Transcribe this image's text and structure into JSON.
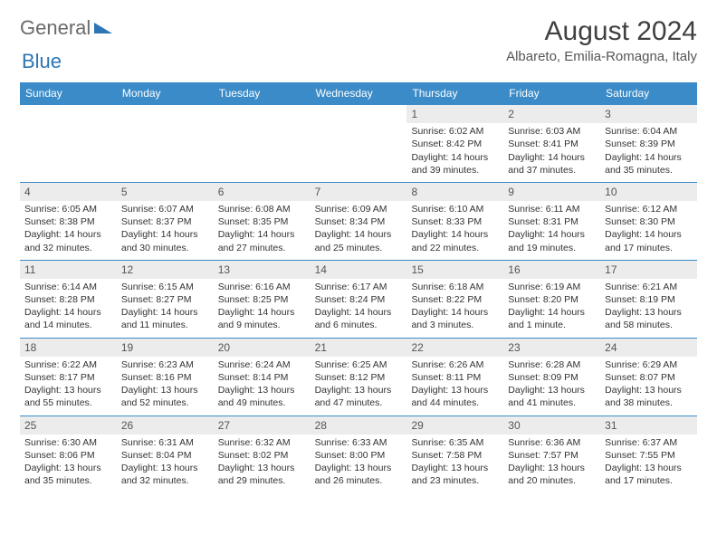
{
  "logo": {
    "part1": "General",
    "part2": "Blue"
  },
  "title": "August 2024",
  "location": "Albareto, Emilia-Romagna, Italy",
  "colors": {
    "header_bar": "#3b8bc8",
    "daynum_bg": "#ececec",
    "text": "#333333",
    "logo_gray": "#6a6a6a",
    "logo_blue": "#2d75b5"
  },
  "weekdays": [
    "Sunday",
    "Monday",
    "Tuesday",
    "Wednesday",
    "Thursday",
    "Friday",
    "Saturday"
  ],
  "weeks": [
    [
      {
        "n": "",
        "sr": "",
        "ss": "",
        "dl": ""
      },
      {
        "n": "",
        "sr": "",
        "ss": "",
        "dl": ""
      },
      {
        "n": "",
        "sr": "",
        "ss": "",
        "dl": ""
      },
      {
        "n": "",
        "sr": "",
        "ss": "",
        "dl": ""
      },
      {
        "n": "1",
        "sr": "Sunrise: 6:02 AM",
        "ss": "Sunset: 8:42 PM",
        "dl": "Daylight: 14 hours and 39 minutes."
      },
      {
        "n": "2",
        "sr": "Sunrise: 6:03 AM",
        "ss": "Sunset: 8:41 PM",
        "dl": "Daylight: 14 hours and 37 minutes."
      },
      {
        "n": "3",
        "sr": "Sunrise: 6:04 AM",
        "ss": "Sunset: 8:39 PM",
        "dl": "Daylight: 14 hours and 35 minutes."
      }
    ],
    [
      {
        "n": "4",
        "sr": "Sunrise: 6:05 AM",
        "ss": "Sunset: 8:38 PM",
        "dl": "Daylight: 14 hours and 32 minutes."
      },
      {
        "n": "5",
        "sr": "Sunrise: 6:07 AM",
        "ss": "Sunset: 8:37 PM",
        "dl": "Daylight: 14 hours and 30 minutes."
      },
      {
        "n": "6",
        "sr": "Sunrise: 6:08 AM",
        "ss": "Sunset: 8:35 PM",
        "dl": "Daylight: 14 hours and 27 minutes."
      },
      {
        "n": "7",
        "sr": "Sunrise: 6:09 AM",
        "ss": "Sunset: 8:34 PM",
        "dl": "Daylight: 14 hours and 25 minutes."
      },
      {
        "n": "8",
        "sr": "Sunrise: 6:10 AM",
        "ss": "Sunset: 8:33 PM",
        "dl": "Daylight: 14 hours and 22 minutes."
      },
      {
        "n": "9",
        "sr": "Sunrise: 6:11 AM",
        "ss": "Sunset: 8:31 PM",
        "dl": "Daylight: 14 hours and 19 minutes."
      },
      {
        "n": "10",
        "sr": "Sunrise: 6:12 AM",
        "ss": "Sunset: 8:30 PM",
        "dl": "Daylight: 14 hours and 17 minutes."
      }
    ],
    [
      {
        "n": "11",
        "sr": "Sunrise: 6:14 AM",
        "ss": "Sunset: 8:28 PM",
        "dl": "Daylight: 14 hours and 14 minutes."
      },
      {
        "n": "12",
        "sr": "Sunrise: 6:15 AM",
        "ss": "Sunset: 8:27 PM",
        "dl": "Daylight: 14 hours and 11 minutes."
      },
      {
        "n": "13",
        "sr": "Sunrise: 6:16 AM",
        "ss": "Sunset: 8:25 PM",
        "dl": "Daylight: 14 hours and 9 minutes."
      },
      {
        "n": "14",
        "sr": "Sunrise: 6:17 AM",
        "ss": "Sunset: 8:24 PM",
        "dl": "Daylight: 14 hours and 6 minutes."
      },
      {
        "n": "15",
        "sr": "Sunrise: 6:18 AM",
        "ss": "Sunset: 8:22 PM",
        "dl": "Daylight: 14 hours and 3 minutes."
      },
      {
        "n": "16",
        "sr": "Sunrise: 6:19 AM",
        "ss": "Sunset: 8:20 PM",
        "dl": "Daylight: 14 hours and 1 minute."
      },
      {
        "n": "17",
        "sr": "Sunrise: 6:21 AM",
        "ss": "Sunset: 8:19 PM",
        "dl": "Daylight: 13 hours and 58 minutes."
      }
    ],
    [
      {
        "n": "18",
        "sr": "Sunrise: 6:22 AM",
        "ss": "Sunset: 8:17 PM",
        "dl": "Daylight: 13 hours and 55 minutes."
      },
      {
        "n": "19",
        "sr": "Sunrise: 6:23 AM",
        "ss": "Sunset: 8:16 PM",
        "dl": "Daylight: 13 hours and 52 minutes."
      },
      {
        "n": "20",
        "sr": "Sunrise: 6:24 AM",
        "ss": "Sunset: 8:14 PM",
        "dl": "Daylight: 13 hours and 49 minutes."
      },
      {
        "n": "21",
        "sr": "Sunrise: 6:25 AM",
        "ss": "Sunset: 8:12 PM",
        "dl": "Daylight: 13 hours and 47 minutes."
      },
      {
        "n": "22",
        "sr": "Sunrise: 6:26 AM",
        "ss": "Sunset: 8:11 PM",
        "dl": "Daylight: 13 hours and 44 minutes."
      },
      {
        "n": "23",
        "sr": "Sunrise: 6:28 AM",
        "ss": "Sunset: 8:09 PM",
        "dl": "Daylight: 13 hours and 41 minutes."
      },
      {
        "n": "24",
        "sr": "Sunrise: 6:29 AM",
        "ss": "Sunset: 8:07 PM",
        "dl": "Daylight: 13 hours and 38 minutes."
      }
    ],
    [
      {
        "n": "25",
        "sr": "Sunrise: 6:30 AM",
        "ss": "Sunset: 8:06 PM",
        "dl": "Daylight: 13 hours and 35 minutes."
      },
      {
        "n": "26",
        "sr": "Sunrise: 6:31 AM",
        "ss": "Sunset: 8:04 PM",
        "dl": "Daylight: 13 hours and 32 minutes."
      },
      {
        "n": "27",
        "sr": "Sunrise: 6:32 AM",
        "ss": "Sunset: 8:02 PM",
        "dl": "Daylight: 13 hours and 29 minutes."
      },
      {
        "n": "28",
        "sr": "Sunrise: 6:33 AM",
        "ss": "Sunset: 8:00 PM",
        "dl": "Daylight: 13 hours and 26 minutes."
      },
      {
        "n": "29",
        "sr": "Sunrise: 6:35 AM",
        "ss": "Sunset: 7:58 PM",
        "dl": "Daylight: 13 hours and 23 minutes."
      },
      {
        "n": "30",
        "sr": "Sunrise: 6:36 AM",
        "ss": "Sunset: 7:57 PM",
        "dl": "Daylight: 13 hours and 20 minutes."
      },
      {
        "n": "31",
        "sr": "Sunrise: 6:37 AM",
        "ss": "Sunset: 7:55 PM",
        "dl": "Daylight: 13 hours and 17 minutes."
      }
    ]
  ]
}
